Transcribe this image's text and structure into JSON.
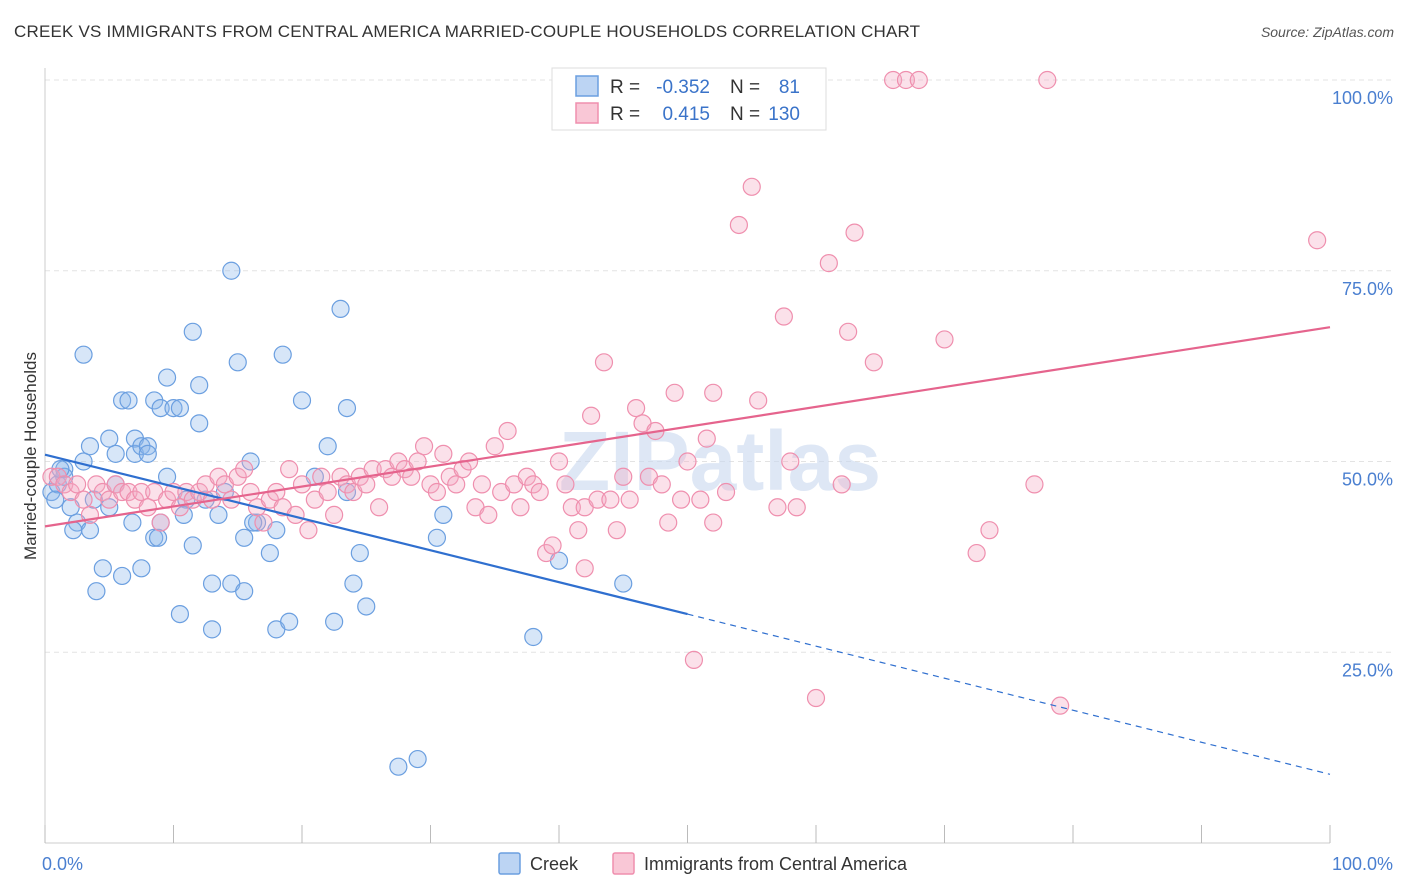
{
  "title": "CREEK VS IMMIGRANTS FROM CENTRAL AMERICA MARRIED-COUPLE HOUSEHOLDS CORRELATION CHART",
  "source": "Source: ZipAtlas.com",
  "watermark": "ZIPatlas",
  "chart_data": {
    "type": "scatter",
    "ylabel": "Married-couple Households",
    "xlim": [
      0,
      100
    ],
    "ylim": [
      0,
      100
    ],
    "x_tick_labels": [
      "0.0%",
      "100.0%"
    ],
    "y_ticks": [
      25,
      50,
      75,
      100
    ],
    "y_tick_labels": [
      "25.0%",
      "50.0%",
      "75.0%",
      "100.0%"
    ],
    "grid": true,
    "legend_position": "top-center",
    "colors": {
      "Creek": "#6b9fe0",
      "Immigrants from Central America": "#ef8fae",
      "creek_line": "#2f6fcf",
      "immigrants_line": "#e5648d"
    },
    "legend": [
      {
        "r_label": "R =",
        "r": "-0.352",
        "n_label": "N =",
        "n": "81"
      },
      {
        "r_label": "R =",
        "r": "0.415",
        "n_label": "N =",
        "n": "130"
      }
    ],
    "series": [
      {
        "name": "Creek",
        "trend": {
          "x0": 0,
          "y0": 50.9,
          "x1": 50,
          "y1": 30.0,
          "dash_to_x": 100,
          "dash_to_y": 9.0
        },
        "points": [
          [
            0.5,
            46
          ],
          [
            1,
            47
          ],
          [
            1.5,
            49
          ],
          [
            1.5,
            48
          ],
          [
            2,
            44
          ],
          [
            2.5,
            42
          ],
          [
            3,
            64
          ],
          [
            3,
            50
          ],
          [
            3.5,
            52
          ],
          [
            3.5,
            41
          ],
          [
            4,
            33
          ],
          [
            4.5,
            36
          ],
          [
            5,
            53
          ],
          [
            5,
            44
          ],
          [
            5.5,
            51
          ],
          [
            5.5,
            47
          ],
          [
            6,
            58
          ],
          [
            6,
            35
          ],
          [
            6.5,
            58
          ],
          [
            7,
            53
          ],
          [
            7,
            51
          ],
          [
            7.5,
            52
          ],
          [
            7.5,
            36
          ],
          [
            8,
            52
          ],
          [
            8,
            51
          ],
          [
            8.5,
            58
          ],
          [
            8.5,
            40
          ],
          [
            9,
            57
          ],
          [
            9,
            42
          ],
          [
            9.5,
            61
          ],
          [
            9.5,
            48
          ],
          [
            10,
            57
          ],
          [
            10.5,
            57
          ],
          [
            11,
            45
          ],
          [
            10.5,
            30
          ],
          [
            11.5,
            67
          ],
          [
            11.5,
            39
          ],
          [
            12,
            55
          ],
          [
            12,
            60
          ],
          [
            12.5,
            45
          ],
          [
            13,
            34
          ],
          [
            13.5,
            43
          ],
          [
            13,
            28
          ],
          [
            14,
            46
          ],
          [
            14.5,
            34
          ],
          [
            14.5,
            75
          ],
          [
            15,
            63
          ],
          [
            15.5,
            40
          ],
          [
            15.5,
            33
          ],
          [
            16,
            50
          ],
          [
            16.5,
            42
          ],
          [
            18,
            41
          ],
          [
            18,
            28
          ],
          [
            18.5,
            64
          ],
          [
            19,
            29
          ],
          [
            20,
            58
          ],
          [
            21,
            48
          ],
          [
            22,
            52
          ],
          [
            22.5,
            29
          ],
          [
            23,
            70
          ],
          [
            23.5,
            57
          ],
          [
            23.5,
            46
          ],
          [
            24,
            34
          ],
          [
            24.5,
            38
          ],
          [
            25,
            31
          ],
          [
            27.5,
            10
          ],
          [
            29,
            11
          ],
          [
            30.5,
            40
          ],
          [
            31,
            43
          ],
          [
            38,
            27
          ],
          [
            40,
            37
          ],
          [
            45,
            34
          ],
          [
            0.8,
            45
          ],
          [
            1.2,
            49
          ],
          [
            2.2,
            41
          ],
          [
            3.8,
            45
          ],
          [
            6.8,
            42
          ],
          [
            8.8,
            40
          ],
          [
            10.8,
            43
          ],
          [
            16.2,
            42
          ],
          [
            17.5,
            38
          ]
        ]
      },
      {
        "name": "Immigrants from Central America",
        "trend": {
          "x0": 0,
          "y0": 41.5,
          "x1": 100,
          "y1": 67.6
        },
        "points": [
          [
            0.5,
            48
          ],
          [
            1,
            48
          ],
          [
            1.5,
            47
          ],
          [
            2,
            46
          ],
          [
            2.5,
            47
          ],
          [
            3,
            45
          ],
          [
            3.5,
            43
          ],
          [
            4,
            47
          ],
          [
            4.5,
            46
          ],
          [
            5,
            45
          ],
          [
            5.5,
            47
          ],
          [
            6,
            46
          ],
          [
            6.5,
            46
          ],
          [
            7,
            45
          ],
          [
            7.5,
            46
          ],
          [
            8,
            44
          ],
          [
            8.5,
            46
          ],
          [
            9,
            42
          ],
          [
            9.5,
            45
          ],
          [
            10,
            46
          ],
          [
            10.5,
            44
          ],
          [
            11,
            46
          ],
          [
            11.5,
            45
          ],
          [
            12,
            46
          ],
          [
            12.5,
            47
          ],
          [
            13,
            45
          ],
          [
            13.5,
            48
          ],
          [
            14,
            47
          ],
          [
            14.5,
            45
          ],
          [
            15,
            48
          ],
          [
            15.5,
            49
          ],
          [
            16,
            46
          ],
          [
            16.5,
            44
          ],
          [
            17,
            42
          ],
          [
            17.5,
            45
          ],
          [
            18,
            46
          ],
          [
            18.5,
            44
          ],
          [
            19,
            49
          ],
          [
            19.5,
            43
          ],
          [
            20,
            47
          ],
          [
            20.5,
            41
          ],
          [
            21,
            45
          ],
          [
            21.5,
            48
          ],
          [
            22,
            46
          ],
          [
            22.5,
            43
          ],
          [
            23,
            48
          ],
          [
            23.5,
            47
          ],
          [
            24,
            46
          ],
          [
            24.5,
            48
          ],
          [
            25,
            47
          ],
          [
            25.5,
            49
          ],
          [
            26,
            44
          ],
          [
            26.5,
            49
          ],
          [
            27,
            48
          ],
          [
            27.5,
            50
          ],
          [
            28,
            49
          ],
          [
            28.5,
            48
          ],
          [
            29,
            50
          ],
          [
            29.5,
            52
          ],
          [
            30,
            47
          ],
          [
            30.5,
            46
          ],
          [
            31,
            51
          ],
          [
            31.5,
            48
          ],
          [
            32,
            47
          ],
          [
            32.5,
            49
          ],
          [
            33,
            50
          ],
          [
            33.5,
            44
          ],
          [
            34,
            47
          ],
          [
            34.5,
            43
          ],
          [
            35,
            52
          ],
          [
            35.5,
            46
          ],
          [
            36,
            54
          ],
          [
            36.5,
            47
          ],
          [
            37,
            44
          ],
          [
            37.5,
            48
          ],
          [
            38,
            47
          ],
          [
            38.5,
            46
          ],
          [
            39,
            38
          ],
          [
            39.5,
            39
          ],
          [
            40,
            50
          ],
          [
            40.5,
            47
          ],
          [
            41,
            44
          ],
          [
            41.5,
            41
          ],
          [
            42,
            44
          ],
          [
            42.5,
            56
          ],
          [
            43,
            45
          ],
          [
            43.5,
            63
          ],
          [
            44,
            45
          ],
          [
            44.5,
            41
          ],
          [
            45,
            48
          ],
          [
            45.5,
            45
          ],
          [
            46,
            57
          ],
          [
            46.5,
            55
          ],
          [
            47,
            48
          ],
          [
            47.5,
            54
          ],
          [
            48,
            47
          ],
          [
            48.5,
            42
          ],
          [
            49,
            59
          ],
          [
            49.5,
            45
          ],
          [
            50,
            50
          ],
          [
            50.5,
            24
          ],
          [
            51,
            45
          ],
          [
            51.5,
            53
          ],
          [
            52,
            59
          ],
          [
            53,
            46
          ],
          [
            54,
            81
          ],
          [
            55,
            86
          ],
          [
            55.5,
            58
          ],
          [
            57,
            44
          ],
          [
            57.5,
            69
          ],
          [
            58,
            50
          ],
          [
            58.5,
            44
          ],
          [
            60,
            19
          ],
          [
            61,
            76
          ],
          [
            62,
            47
          ],
          [
            62.5,
            67
          ],
          [
            63,
            80
          ],
          [
            64.5,
            63
          ],
          [
            66,
            100
          ],
          [
            67,
            100
          ],
          [
            68,
            100
          ],
          [
            70,
            66
          ],
          [
            72.5,
            38
          ],
          [
            73.5,
            41
          ],
          [
            77,
            47
          ],
          [
            78,
            100
          ],
          [
            79,
            18
          ],
          [
            99,
            79
          ],
          [
            42,
            36
          ],
          [
            52,
            42
          ]
        ]
      }
    ],
    "bottom_legend": [
      "Creek",
      "Immigrants from Central America"
    ]
  }
}
